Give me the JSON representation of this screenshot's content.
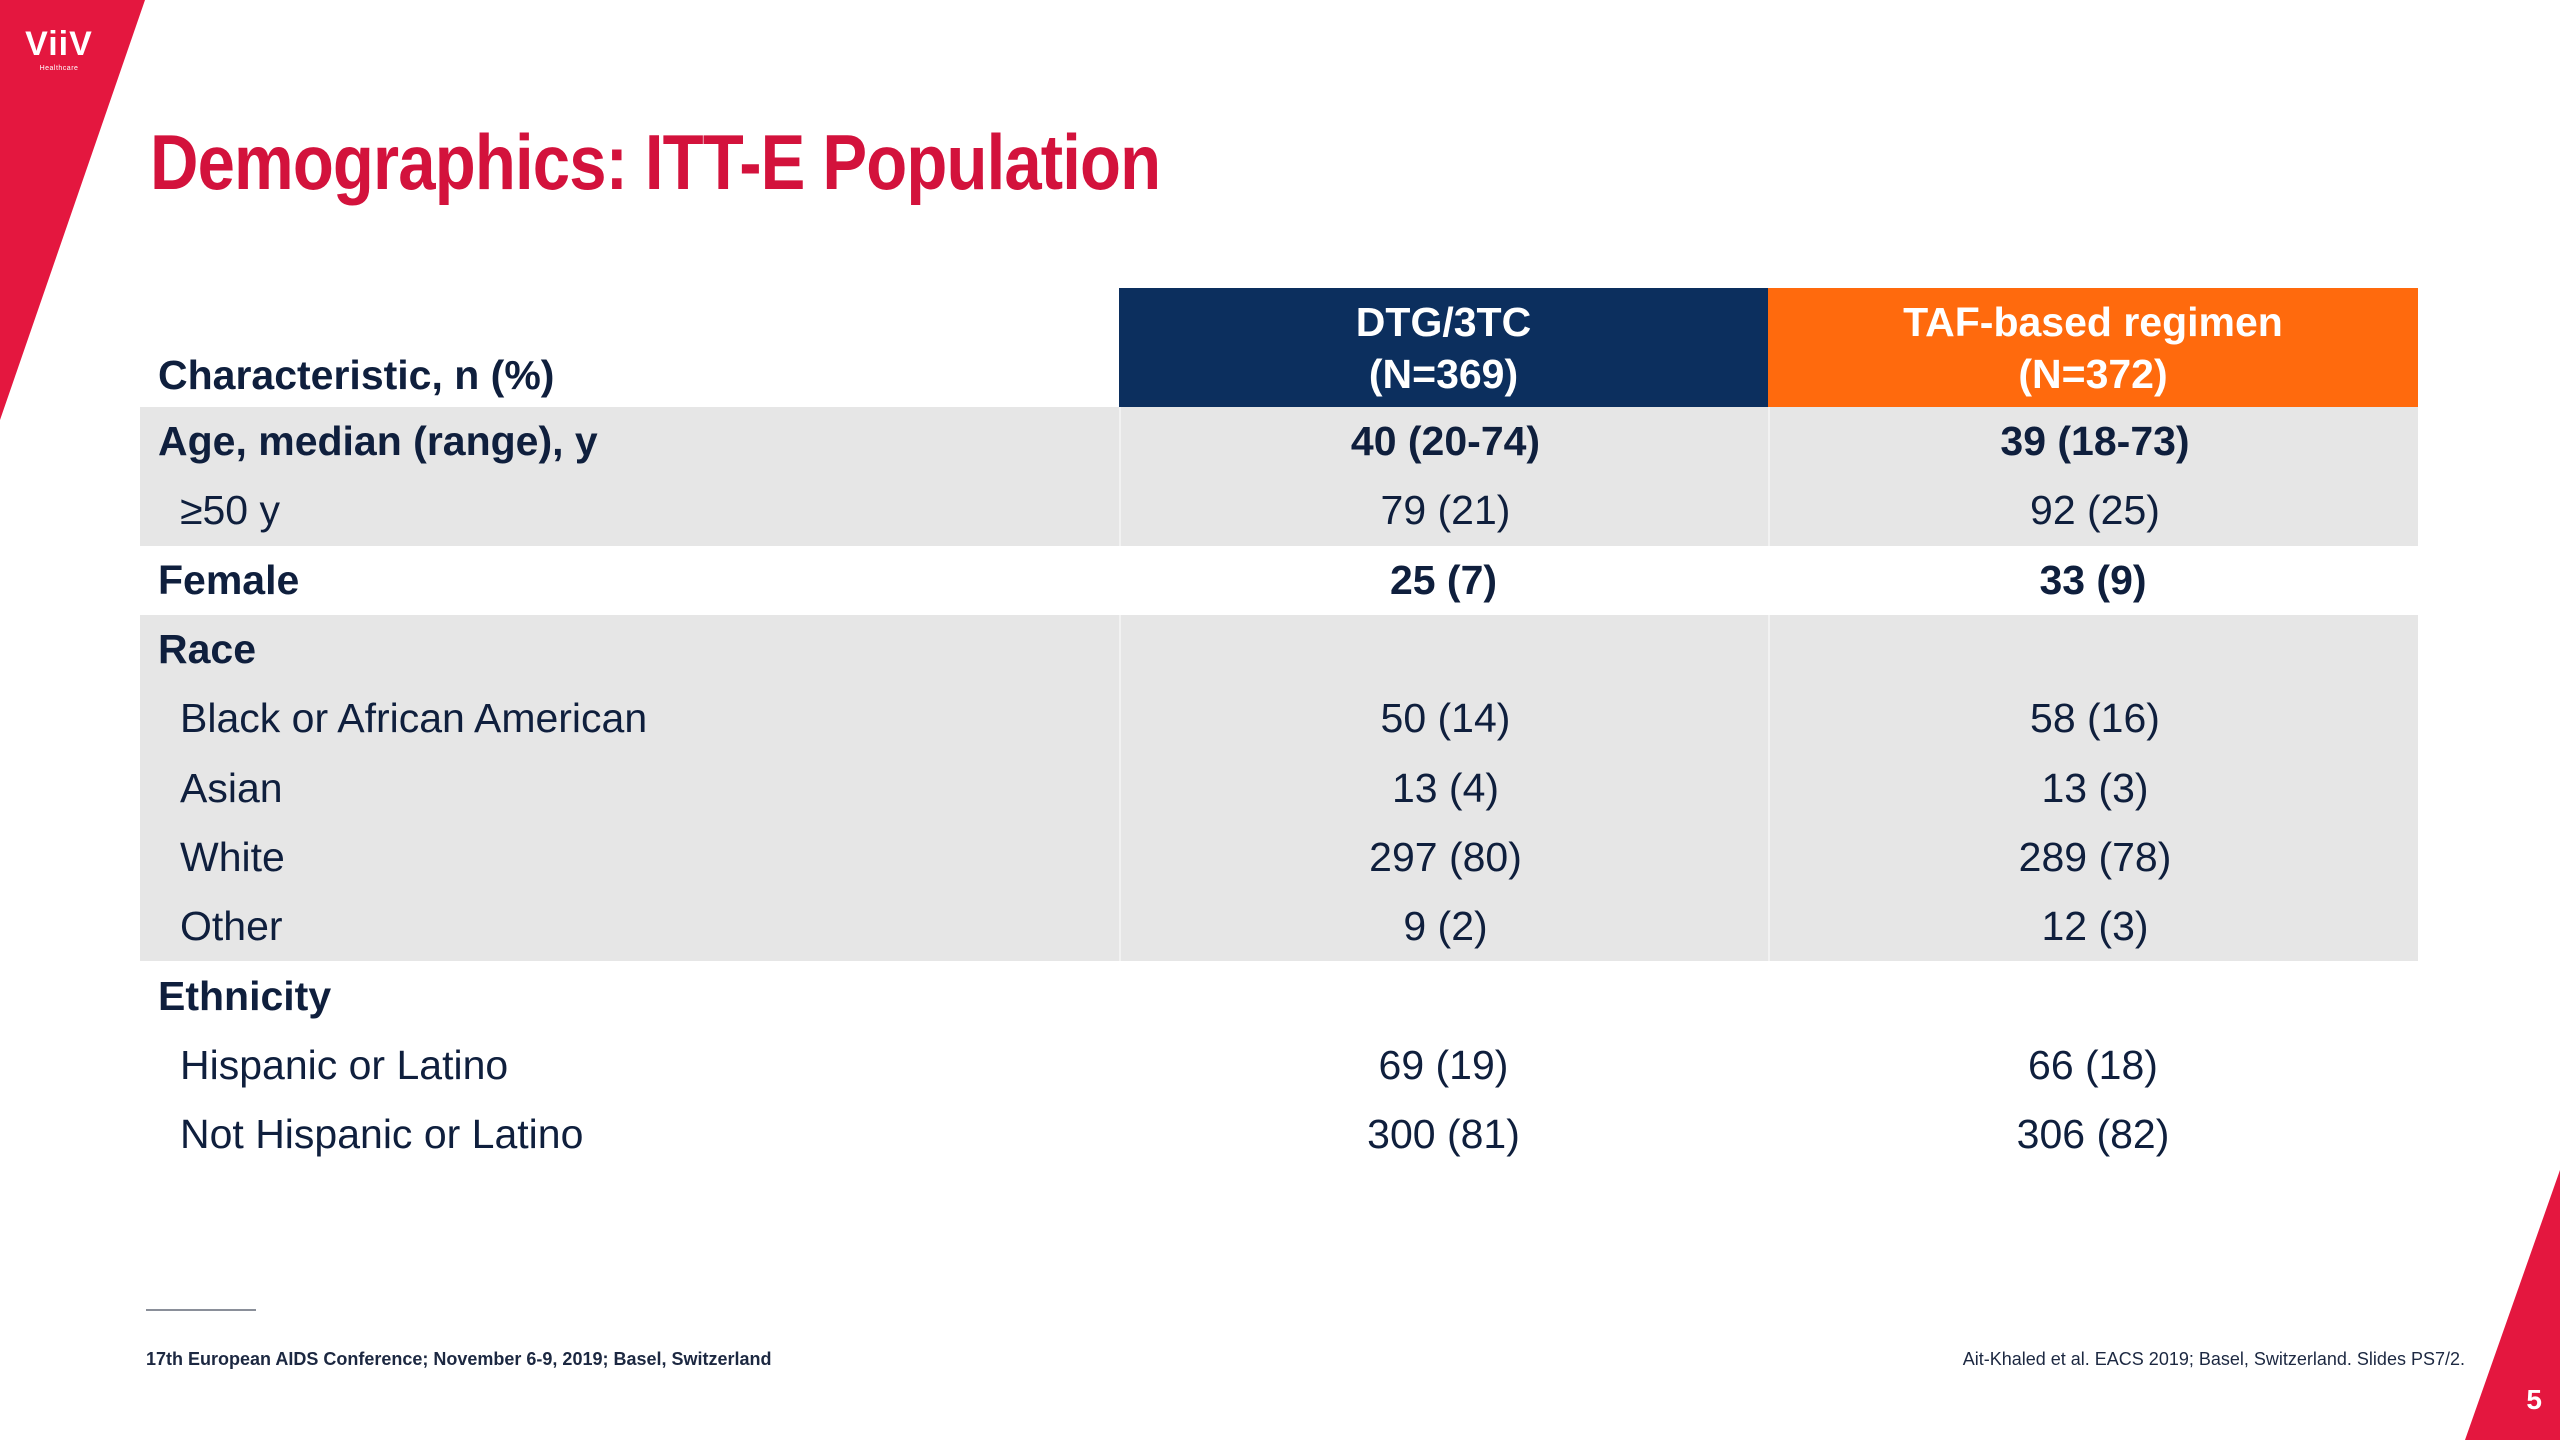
{
  "logo": {
    "text": "ViiV",
    "subtext": "Healthcare"
  },
  "title": "Demographics: ITT-E Population",
  "table": {
    "header": {
      "characteristic": "Characteristic, n (%)",
      "col1_line1": "DTG/3TC",
      "col1_line2": "(N=369)",
      "col2_line1": "TAF-based regimen",
      "col2_line2": "(N=372)"
    },
    "rows": [
      {
        "label": "Age, median (range), y",
        "v1": "40 (20-74)",
        "v2": "39 (18-73)"
      },
      {
        "label": "≥50 y",
        "v1": "79 (21)",
        "v2": "92 (25)"
      },
      {
        "label": "Female",
        "v1": "25 (7)",
        "v2": "33 (9)"
      },
      {
        "label": "Race",
        "v1": "",
        "v2": ""
      },
      {
        "label": "Black or African American",
        "v1": "50 (14)",
        "v2": "58 (16)"
      },
      {
        "label": "Asian",
        "v1": "13 (4)",
        "v2": "13 (3)"
      },
      {
        "label": "White",
        "v1": "297 (80)",
        "v2": "289 (78)"
      },
      {
        "label": "Other",
        "v1": "9 (2)",
        "v2": "12 (3)"
      },
      {
        "label": "Ethnicity",
        "v1": "",
        "v2": ""
      },
      {
        "label": "Hispanic or Latino",
        "v1": "69 (19)",
        "v2": "66 (18)"
      },
      {
        "label": "Not Hispanic or Latino",
        "v1": "300 (81)",
        "v2": "306 (82)"
      }
    ]
  },
  "footer": {
    "left": "17th European AIDS Conference; November 6-9, 2019; Basel, Switzerland",
    "right": "Ait-Khaled et al. EACS 2019; Basel, Switzerland. Slides PS7/2.",
    "page": "5"
  },
  "colors": {
    "brand_red": "#d3123c",
    "header_navy": "#0c2f5e",
    "header_orange": "#ff6a0d",
    "row_shade": "#e6e6e6"
  }
}
